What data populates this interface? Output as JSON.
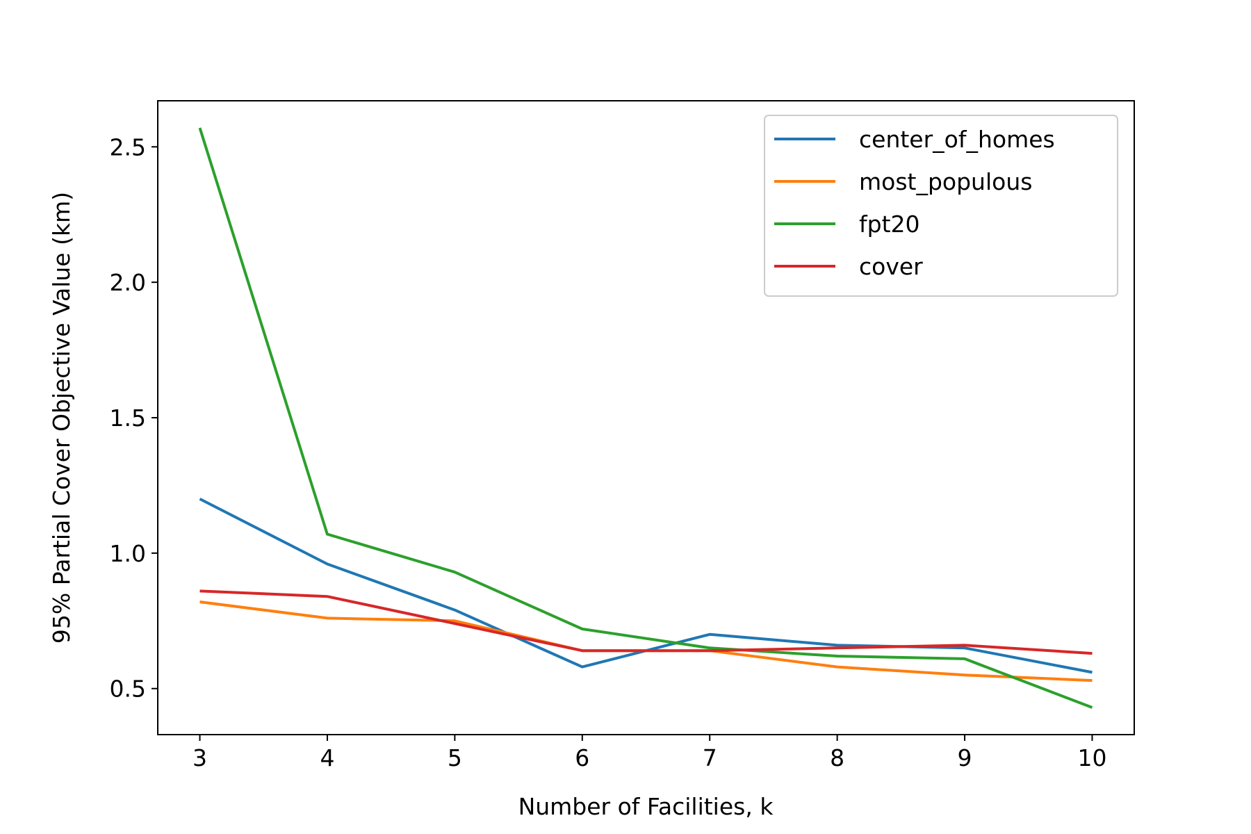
{
  "chart_data": {
    "type": "line",
    "title": "",
    "xlabel": "Number of Facilities, k",
    "ylabel": "95% Partial Cover Objective Value (km)",
    "x": [
      3,
      4,
      5,
      6,
      7,
      8,
      9,
      10
    ],
    "xlim": [
      2.67,
      10.33
    ],
    "ylim": [
      0.33,
      2.67
    ],
    "xticks": [
      3,
      4,
      5,
      6,
      7,
      8,
      9,
      10
    ],
    "xtick_labels": [
      "3",
      "4",
      "5",
      "6",
      "7",
      "8",
      "9",
      "10"
    ],
    "yticks": [
      0.5,
      1.0,
      1.5,
      2.0,
      2.5
    ],
    "ytick_labels": [
      "0.5",
      "1.0",
      "1.5",
      "2.0",
      "2.5"
    ],
    "grid": false,
    "legend_position": "top-right",
    "series": [
      {
        "name": "center_of_homes",
        "color": "#1f77b4",
        "values": [
          1.2,
          0.96,
          0.79,
          0.58,
          0.7,
          0.66,
          0.65,
          0.56
        ]
      },
      {
        "name": "most_populous",
        "color": "#ff7f0e",
        "values": [
          0.82,
          0.76,
          0.75,
          0.64,
          0.64,
          0.58,
          0.55,
          0.53
        ]
      },
      {
        "name": "fpt20",
        "color": "#2ca02c",
        "values": [
          2.57,
          1.07,
          0.93,
          0.72,
          0.65,
          0.62,
          0.61,
          0.43
        ]
      },
      {
        "name": "cover",
        "color": "#d62728",
        "values": [
          0.86,
          0.84,
          0.74,
          0.64,
          0.64,
          0.65,
          0.66,
          0.63
        ]
      }
    ]
  }
}
